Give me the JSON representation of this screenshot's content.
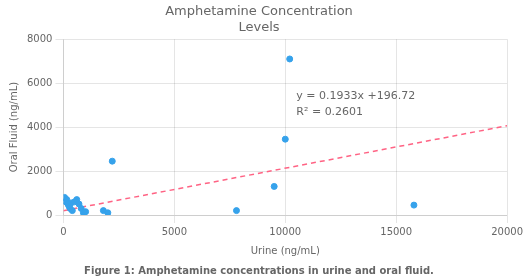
{
  "chart_data": {
    "type": "scatter",
    "title": "Amphetamine Concentration\nLevels",
    "xlabel": "Urine (ng/mL)",
    "ylabel": "Oral Fluid (ng/mL)",
    "caption": "Figure 1: Amphetamine concentrations in urine and oral fluid.",
    "series": [
      {
        "type": "scatter",
        "x": [
          50,
          100,
          150,
          200,
          250,
          300,
          350,
          400,
          500,
          600,
          700,
          800,
          900,
          1000,
          1800,
          2000,
          2200,
          7800,
          9500,
          10000,
          10200,
          15800
        ],
        "values": [
          800,
          600,
          700,
          500,
          400,
          300,
          550,
          200,
          600,
          700,
          500,
          300,
          100,
          150,
          200,
          100,
          2450,
          200,
          1300,
          3450,
          7100,
          450
        ]
      },
      {
        "type": "line",
        "line_style": "dashed",
        "x": [
          0,
          20000
        ],
        "values": [
          196.72,
          4062.72
        ]
      }
    ],
    "annotations": [
      "y = 0.1933x +196.72",
      "R² = 0.2601"
    ],
    "xlim": [
      0,
      20000
    ],
    "ylim": [
      0,
      8000
    ],
    "xticks": [
      0,
      5000,
      10000,
      15000,
      20000
    ],
    "yticks": [
      0,
      2000,
      4000,
      6000,
      8000
    ],
    "grid": true
  }
}
